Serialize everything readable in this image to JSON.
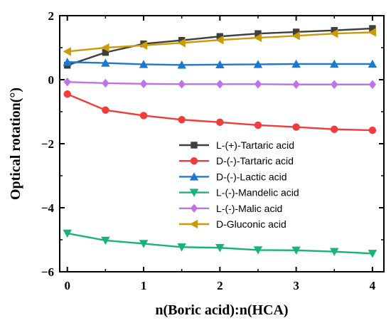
{
  "chart_data": {
    "type": "line",
    "xlabel": "n(Boric acid):n(HCA)",
    "ylabel": "Optical rotation(°)",
    "xlim": [
      -0.1,
      4.15
    ],
    "ylim": [
      -6,
      2
    ],
    "xticks": [
      0,
      1,
      2,
      3,
      4
    ],
    "xtick_labels": [
      "0",
      "1",
      "2",
      "3",
      "4"
    ],
    "yticks": [
      -6,
      -4,
      -2,
      0,
      2
    ],
    "ytick_labels": [
      "−6",
      "−4",
      "−2",
      "0",
      "2"
    ],
    "grid": false,
    "legend_position": "center-right",
    "x": [
      0,
      0.5,
      1,
      1.5,
      2,
      2.5,
      3,
      3.5,
      4
    ],
    "series": [
      {
        "name": "L-(+)-Tartaric acid",
        "color": "#3f3f3f",
        "marker": "square",
        "values": [
          0.45,
          0.85,
          1.12,
          1.23,
          1.35,
          1.44,
          1.49,
          1.54,
          1.6
        ]
      },
      {
        "name": "D-(-)-Tartaric acid",
        "color": "#f03c3c",
        "marker": "circle",
        "values": [
          -0.45,
          -0.95,
          -1.12,
          -1.25,
          -1.33,
          -1.42,
          -1.48,
          -1.55,
          -1.58
        ]
      },
      {
        "name": "D-(-)-Lactic acid",
        "color": "#1e78d2",
        "marker": "triangle-up",
        "values": [
          0.55,
          0.52,
          0.48,
          0.46,
          0.47,
          0.48,
          0.49,
          0.49,
          0.49
        ]
      },
      {
        "name": "L-(-)-Mandelic acid",
        "color": "#19b378",
        "marker": "triangle-down",
        "values": [
          -4.8,
          -5.02,
          -5.12,
          -5.23,
          -5.25,
          -5.32,
          -5.33,
          -5.37,
          -5.43
        ]
      },
      {
        "name": "L-(-)-Malic acid",
        "color": "#c073e6",
        "marker": "diamond",
        "values": [
          -0.07,
          -0.11,
          -0.13,
          -0.14,
          -0.14,
          -0.14,
          -0.15,
          -0.15,
          -0.15
        ]
      },
      {
        "name": "D-Gluconic acid",
        "color": "#cc9a06",
        "marker": "triangle-left",
        "values": [
          0.88,
          1.0,
          1.07,
          1.15,
          1.24,
          1.31,
          1.37,
          1.44,
          1.48
        ]
      }
    ]
  }
}
